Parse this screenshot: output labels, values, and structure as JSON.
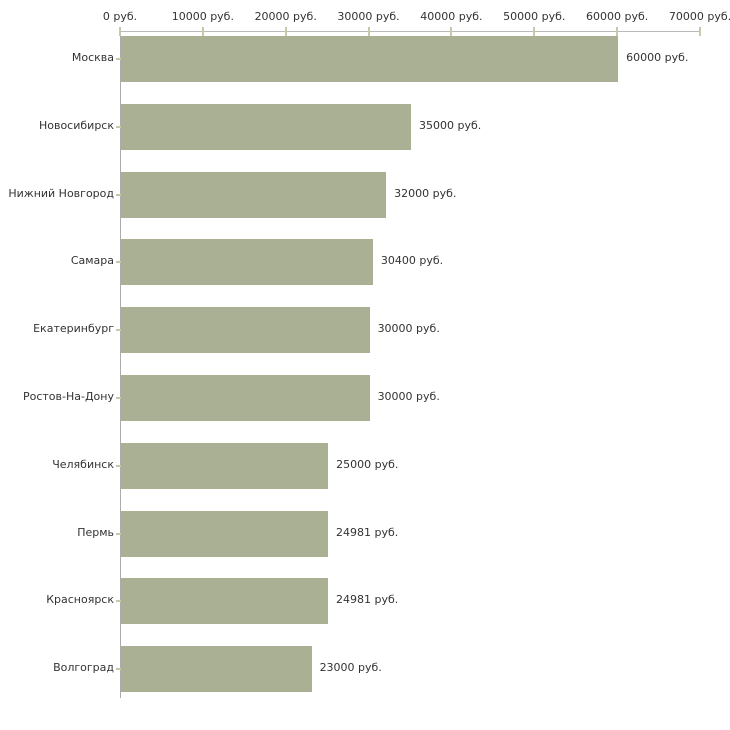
{
  "chart_data": {
    "type": "bar",
    "orientation": "horizontal",
    "title": "",
    "xlabel": "",
    "ylabel": "",
    "categories": [
      "Москва",
      "Новосибирск",
      "Нижний Новгород",
      "Самара",
      "Екатеринбург",
      "Ростов-На-Дону",
      "Челябинск",
      "Пермь",
      "Красноярск",
      "Волгоград"
    ],
    "values": [
      60000,
      35000,
      32000,
      30400,
      30000,
      30000,
      25000,
      24981,
      24981,
      23000
    ],
    "value_labels": [
      "60000 руб.",
      "35000 руб.",
      "32000 руб.",
      "30400 руб.",
      "30000 руб.",
      "30000 руб.",
      "25000 руб.",
      "24981 руб.",
      "24981 руб.",
      "23000 руб."
    ],
    "x_ticks": [
      0,
      10000,
      20000,
      30000,
      40000,
      50000,
      60000,
      70000
    ],
    "x_tick_labels": [
      "0 руб.",
      "10000 руб.",
      "20000 руб.",
      "30000 руб.",
      "40000 руб.",
      "50000 руб.",
      "60000 руб.",
      "70000 руб."
    ],
    "xlim": [
      0,
      70000
    ],
    "grid": false,
    "legend": false,
    "colors": {
      "bar": "#aab094",
      "axis": "#b9b9b9",
      "tick": "#c9c9a9",
      "text": "#333333",
      "background": "#ffffff"
    }
  }
}
